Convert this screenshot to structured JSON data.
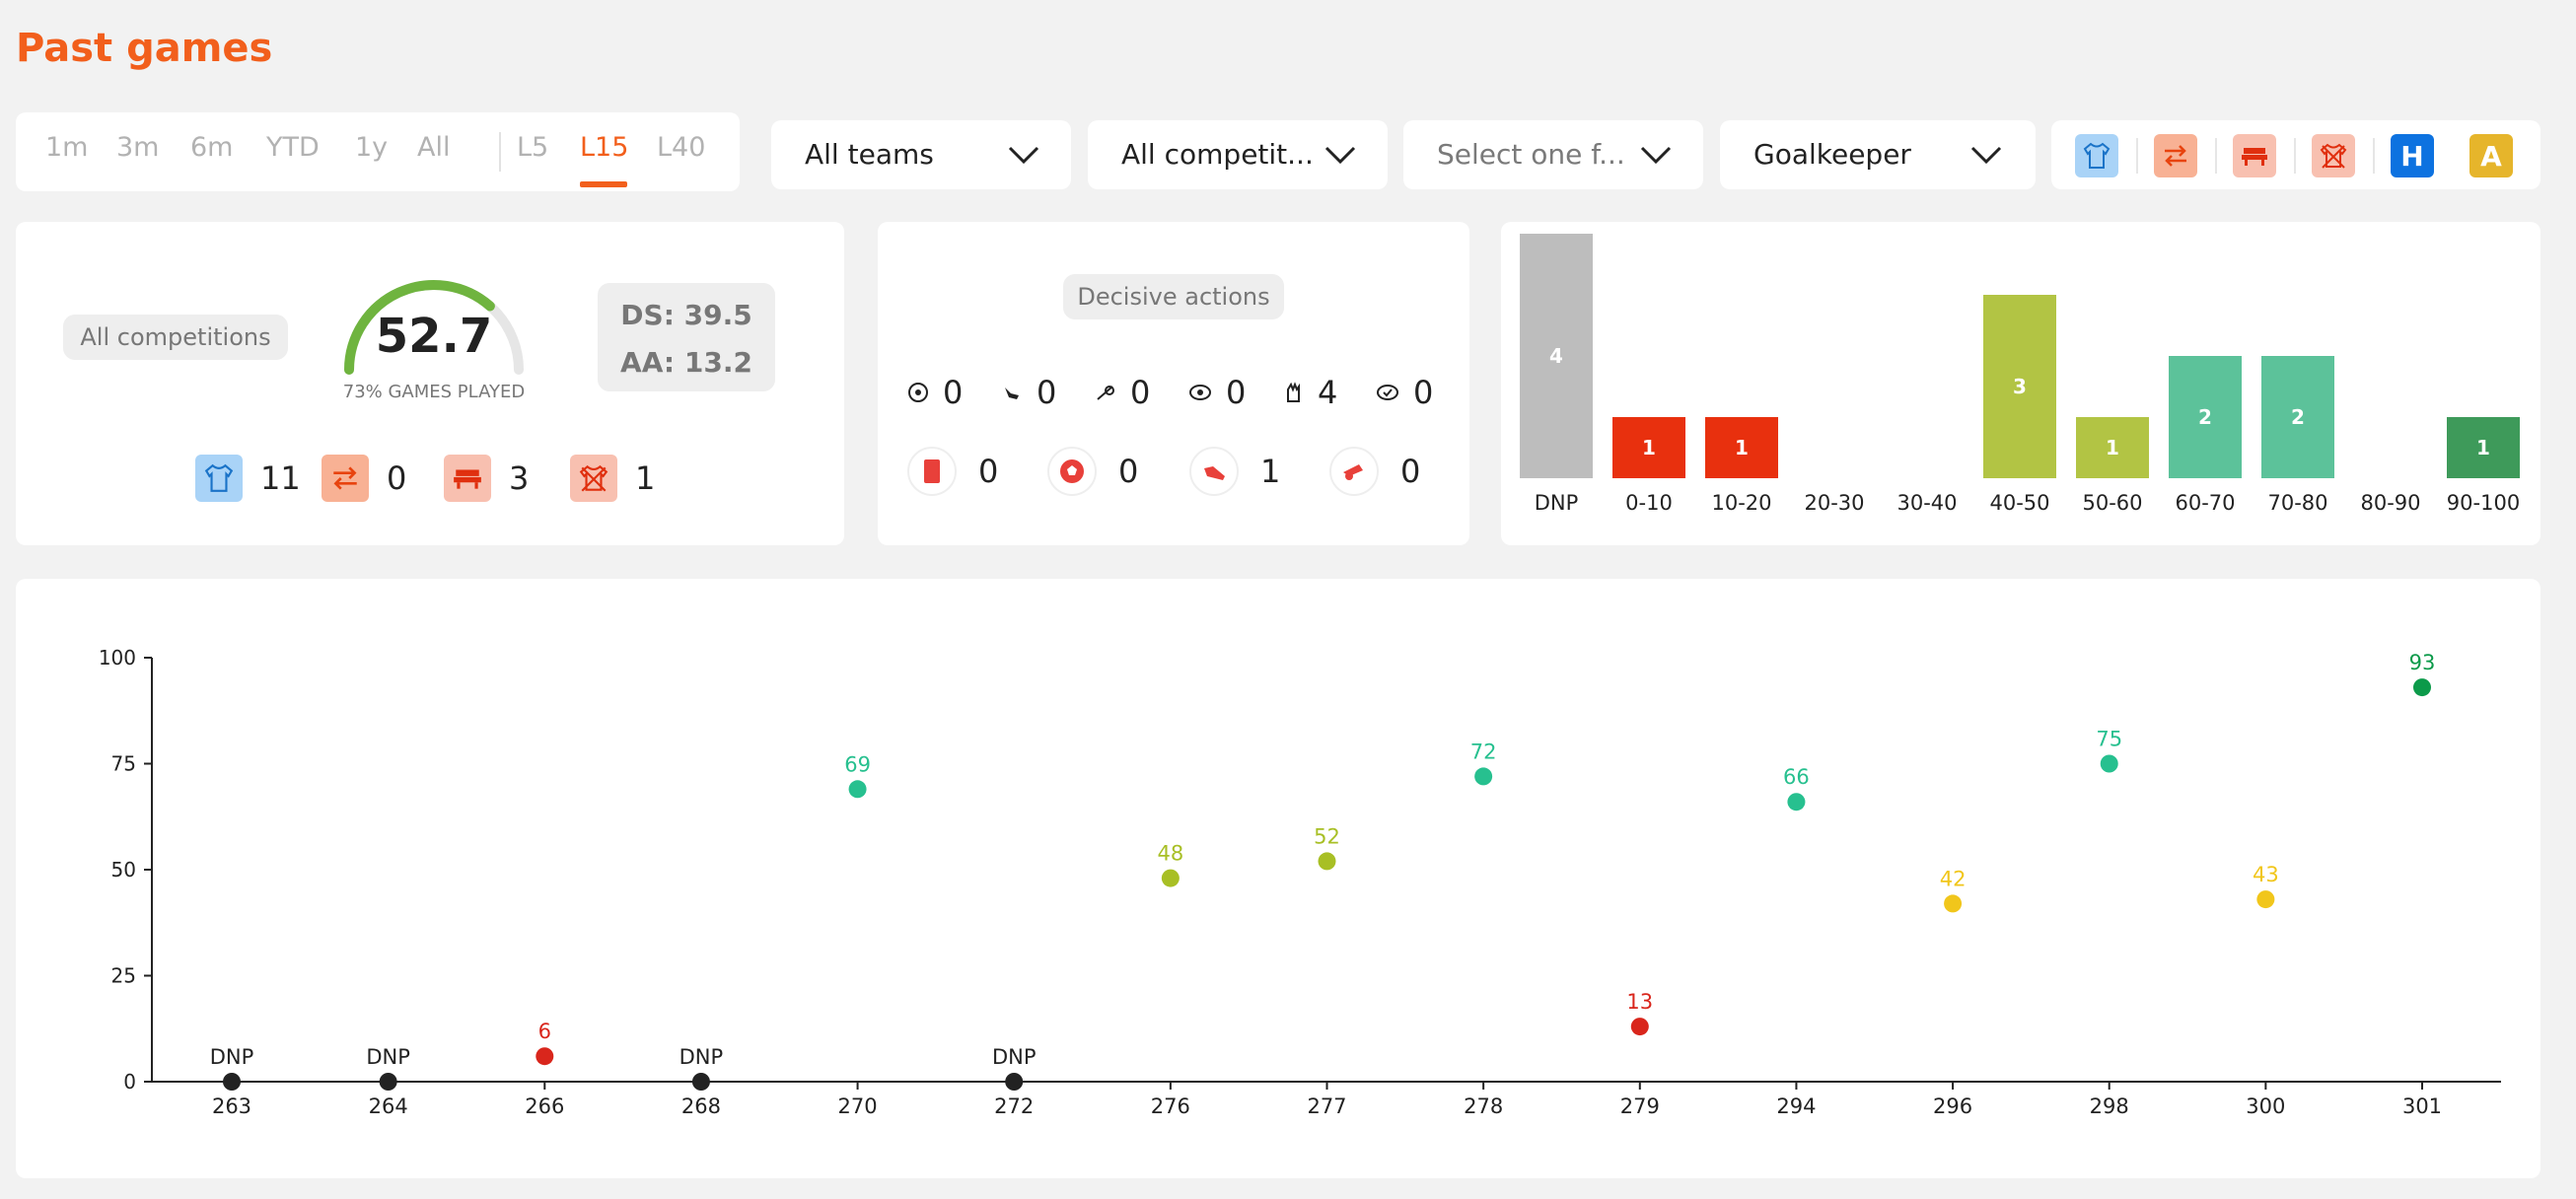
{
  "page_title": "Past games",
  "period": {
    "options": [
      "1m",
      "3m",
      "6m",
      "YTD",
      "1y",
      "All",
      "L5",
      "L15",
      "L40"
    ],
    "active": "L15"
  },
  "filters": {
    "teams": "All teams",
    "competitions": "All competit...",
    "select_placeholder": "Select one f...",
    "position": "Goalkeeper"
  },
  "icon_bar": {
    "home_label": "H",
    "away_label": "A",
    "icons": [
      "jersey-icon",
      "substitution-icon",
      "bench-icon",
      "not-played-icon"
    ]
  },
  "summary": {
    "competition_label": "All competitions",
    "score": "52.7",
    "games_played_label": "73% GAMES PLAYED",
    "games_played_pct": 73,
    "ds": "DS: 39.5",
    "aa": "AA: 13.2",
    "stats": [
      {
        "icon": "jersey-icon",
        "value": "11"
      },
      {
        "icon": "substitution-icon",
        "value": "0"
      },
      {
        "icon": "bench-icon",
        "value": "3"
      },
      {
        "icon": "not-played-icon",
        "value": "1"
      }
    ]
  },
  "decisive": {
    "label": "Decisive actions",
    "row1": [
      {
        "icon": "goal-icon",
        "value": "0"
      },
      {
        "icon": "assist-icon",
        "value": "0"
      },
      {
        "icon": "shot-icon",
        "value": "0"
      },
      {
        "icon": "save-icon",
        "value": "0"
      },
      {
        "icon": "gloves-icon",
        "value": "4"
      },
      {
        "icon": "clean-sheet-icon",
        "value": "0"
      }
    ],
    "row2": [
      {
        "icon": "red-card-icon",
        "value": "0"
      },
      {
        "icon": "own-goal-icon",
        "value": "0"
      },
      {
        "icon": "error-icon",
        "value": "1"
      },
      {
        "icon": "penalty-icon",
        "value": "0"
      }
    ]
  },
  "colors": {
    "accent": "#f25f1c",
    "dnp": "#bdbdbd",
    "red": "#e8300e",
    "olive": "#b2c444",
    "teal": "#5cc29a",
    "green": "#3e9a5a",
    "yellow": "#f1c61b"
  },
  "chart_data": [
    {
      "type": "bar",
      "categories": [
        "DNP",
        "0-10",
        "10-20",
        "20-30",
        "30-40",
        "40-50",
        "50-60",
        "60-70",
        "70-80",
        "80-90",
        "90-100"
      ],
      "values": [
        4,
        1,
        1,
        0,
        0,
        3,
        1,
        2,
        2,
        0,
        1
      ],
      "colors": [
        "#bdbdbd",
        "#e8300e",
        "#e8300e",
        null,
        null,
        "#b2c444",
        "#b2c444",
        "#5cc29a",
        "#5cc29a",
        null,
        "#3e9a5a"
      ]
    },
    {
      "type": "scatter",
      "x": [
        "263",
        "264",
        "266",
        "268",
        "270",
        "272",
        "276",
        "277",
        "278",
        "279",
        "294",
        "296",
        "298",
        "300",
        "301"
      ],
      "y": [
        0,
        0,
        6,
        0,
        69,
        0,
        48,
        52,
        72,
        13,
        66,
        42,
        75,
        43,
        93
      ],
      "labels": [
        "DNP",
        "DNP",
        "6",
        "DNP",
        "69",
        "DNP",
        "48",
        "52",
        "72",
        "13",
        "66",
        "42",
        "75",
        "43",
        "93"
      ],
      "point_colors": [
        "#222222",
        "#222222",
        "#d9261c",
        "#222222",
        "#27c08f",
        "#222222",
        "#a8bf25",
        "#a8bf25",
        "#27c08f",
        "#d9261c",
        "#27c08f",
        "#f1c61b",
        "#27c08f",
        "#f1c61b",
        "#0c9a4a"
      ],
      "label_colors": [
        "#222222",
        "#222222",
        "#d9261c",
        "#222222",
        "#27c08f",
        "#222222",
        "#a8bf25",
        "#a8bf25",
        "#27c08f",
        "#d9261c",
        "#27c08f",
        "#f1c61b",
        "#27c08f",
        "#f1c61b",
        "#0c9a4a"
      ],
      "ylim": [
        0,
        100
      ],
      "yticks": [
        "0",
        "25",
        "50",
        "75",
        "100"
      ]
    }
  ]
}
